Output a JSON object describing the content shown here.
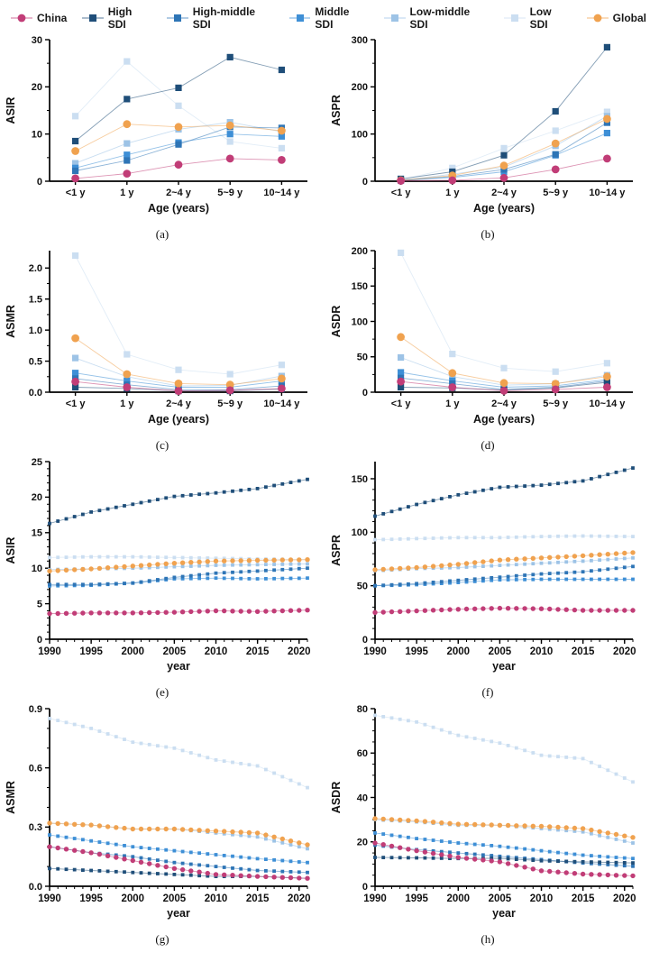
{
  "legend": {
    "items": [
      {
        "label": "China",
        "color": "#C13D77",
        "marker": "circle"
      },
      {
        "label": "High SDI",
        "color": "#1F4E79",
        "marker": "square"
      },
      {
        "label": "High-middle SDI",
        "color": "#2E75B6",
        "marker": "square"
      },
      {
        "label": "Middle SDI",
        "color": "#3E8FD6",
        "marker": "square"
      },
      {
        "label": "Low-middle SDI",
        "color": "#9DC3E6",
        "marker": "square"
      },
      {
        "label": "Low SDI",
        "color": "#CBDEF1",
        "marker": "square"
      },
      {
        "label": "Global",
        "color": "#F0A24F",
        "marker": "circle"
      }
    ]
  },
  "chart_data": [
    {
      "id": "a",
      "caption": "(a)",
      "type": "line",
      "ylabel": "ASIR",
      "xlabel": "Age (years)",
      "x_type": "category",
      "categories": [
        "<1 y",
        "1 y",
        "2~4 y",
        "5~9 y",
        "10~14 y"
      ],
      "ylim": [
        0,
        30
      ],
      "y_top_pad": 0,
      "yticks": [
        0,
        10,
        20,
        30
      ],
      "ytick_labels": [
        "0",
        "10",
        "20",
        "30"
      ],
      "y_minor_step": 5,
      "marker_size": 7.2,
      "series": [
        {
          "name": "Low SDI",
          "values": [
            13.8,
            25.4,
            16.0,
            8.4,
            7.0
          ]
        },
        {
          "name": "Low-middle SDI",
          "values": [
            3.8,
            8.0,
            11.0,
            12.5,
            10.5
          ]
        },
        {
          "name": "Middle SDI",
          "values": [
            2.8,
            5.6,
            8.2,
            10.0,
            9.5
          ]
        },
        {
          "name": "High-middle SDI",
          "values": [
            2.2,
            4.4,
            7.8,
            11.5,
            11.3
          ]
        },
        {
          "name": "High SDI",
          "values": [
            8.5,
            17.4,
            19.8,
            26.3,
            23.6
          ]
        },
        {
          "name": "Global",
          "values": [
            6.4,
            12.1,
            11.5,
            11.8,
            10.7
          ]
        },
        {
          "name": "China",
          "values": [
            0.6,
            1.6,
            3.5,
            4.8,
            4.5
          ]
        }
      ]
    },
    {
      "id": "b",
      "caption": "(b)",
      "type": "line",
      "ylabel": "ASPR",
      "xlabel": "Age (years)",
      "x_type": "category",
      "categories": [
        "<1 y",
        "1 y",
        "2~4 y",
        "5~9 y",
        "10~14 y"
      ],
      "ylim": [
        0,
        300
      ],
      "y_top_pad": 0,
      "yticks": [
        0,
        100,
        200,
        300
      ],
      "ytick_labels": [
        "0",
        "100",
        "200",
        "300"
      ],
      "y_minor_step": 50,
      "marker_size": 7.2,
      "series": [
        {
          "name": "Low SDI",
          "values": [
            3,
            28,
            70,
            107,
            147
          ]
        },
        {
          "name": "Low-middle SDI",
          "values": [
            2,
            15,
            30,
            75,
            138
          ]
        },
        {
          "name": "Middle SDI",
          "values": [
            2,
            8,
            20,
            55,
            102
          ]
        },
        {
          "name": "High-middle SDI",
          "values": [
            2,
            10,
            25,
            57,
            124
          ]
        },
        {
          "name": "High SDI",
          "values": [
            5,
            20,
            55,
            148,
            284
          ]
        },
        {
          "name": "Global",
          "values": [
            2,
            12,
            33,
            80,
            132
          ]
        },
        {
          "name": "China",
          "values": [
            1,
            2,
            7,
            25,
            48
          ]
        }
      ]
    },
    {
      "id": "c",
      "caption": "(c)",
      "type": "line",
      "ylabel": "ASMR",
      "xlabel": "Age (years)",
      "x_type": "category",
      "categories": [
        "<1 y",
        "1 y",
        "2~4 y",
        "5~9 y",
        "10~14 y"
      ],
      "ylim": [
        0,
        2.0
      ],
      "y_top_pad": 0.28,
      "yticks": [
        0,
        0.5,
        1.0,
        1.5,
        2.0
      ],
      "ytick_labels": [
        "0.0",
        "0.5",
        "1.0",
        "1.5",
        "2.0"
      ],
      "y_minor_step": 0.25,
      "marker_size": 7.2,
      "series": [
        {
          "name": "Low SDI",
          "values": [
            2.2,
            0.61,
            0.36,
            0.29,
            0.44
          ]
        },
        {
          "name": "Low-middle SDI",
          "values": [
            0.55,
            0.25,
            0.1,
            0.11,
            0.26
          ]
        },
        {
          "name": "Middle SDI",
          "values": [
            0.31,
            0.18,
            0.08,
            0.08,
            0.18
          ]
        },
        {
          "name": "High-middle SDI",
          "values": [
            0.22,
            0.12,
            0.04,
            0.04,
            0.1
          ]
        },
        {
          "name": "High SDI",
          "values": [
            0.08,
            0.06,
            0.02,
            0.02,
            0.05
          ]
        },
        {
          "name": "Global",
          "values": [
            0.87,
            0.29,
            0.14,
            0.12,
            0.22
          ]
        },
        {
          "name": "China",
          "values": [
            0.17,
            0.08,
            0.02,
            0.03,
            0.06
          ]
        }
      ]
    },
    {
      "id": "d",
      "caption": "(d)",
      "type": "line",
      "ylabel": "ASDR",
      "xlabel": "Age (years)",
      "x_type": "category",
      "categories": [
        "<1 y",
        "1 y",
        "2~4 y",
        "5~9 y",
        "10~14 y"
      ],
      "ylim": [
        0,
        200
      ],
      "y_top_pad": 0,
      "yticks": [
        0,
        50,
        100,
        150,
        200
      ],
      "ytick_labels": [
        "0",
        "50",
        "100",
        "150",
        "200"
      ],
      "y_minor_step": 25,
      "marker_size": 7.2,
      "series": [
        {
          "name": "Low SDI",
          "values": [
            197,
            54,
            34,
            29,
            41
          ]
        },
        {
          "name": "Low-middle SDI",
          "values": [
            49,
            22,
            10,
            12,
            24
          ]
        },
        {
          "name": "Middle SDI",
          "values": [
            28,
            16,
            7,
            9,
            18
          ]
        },
        {
          "name": "High-middle SDI",
          "values": [
            20,
            12,
            4,
            7,
            16
          ]
        },
        {
          "name": "High SDI",
          "values": [
            7,
            6,
            3,
            6,
            14
          ]
        },
        {
          "name": "Global",
          "values": [
            78,
            27,
            13,
            12,
            22
          ]
        },
        {
          "name": "China",
          "values": [
            15,
            7,
            2,
            4,
            7
          ]
        }
      ]
    },
    {
      "id": "e",
      "caption": "(e)",
      "type": "line",
      "ylabel": "ASIR",
      "xlabel": "year",
      "x_type": "linear",
      "xlim": [
        1990,
        2021
      ],
      "xticks": [
        1990,
        1995,
        2000,
        2005,
        2010,
        2015,
        2020
      ],
      "xtick_labels": [
        "1990",
        "1995",
        "2000",
        "2005",
        "2010",
        "2015",
        "2020"
      ],
      "x_minor_step": 1,
      "marker_step": 1,
      "anchor_x": [
        1990,
        1995,
        2000,
        2005,
        2010,
        2015,
        2021
      ],
      "ylim": [
        0,
        25
      ],
      "y_top_pad": 0,
      "yticks": [
        0,
        5,
        10,
        15,
        20,
        25
      ],
      "ytick_labels": [
        "0",
        "5",
        "10",
        "15",
        "20",
        "25"
      ],
      "y_minor_step": 1,
      "marker_size": 3.8,
      "series": [
        {
          "name": "Low SDI",
          "values": [
            11.5,
            11.6,
            11.6,
            11.5,
            11.4,
            11.3,
            11.2
          ]
        },
        {
          "name": "Low-middle SDI",
          "values": [
            9.8,
            9.9,
            10.0,
            10.2,
            10.4,
            10.5,
            10.6
          ]
        },
        {
          "name": "Middle SDI",
          "values": [
            7.5,
            7.6,
            7.9,
            8.5,
            8.6,
            8.5,
            8.6
          ]
        },
        {
          "name": "High-middle SDI",
          "values": [
            7.7,
            7.7,
            7.9,
            8.7,
            9.3,
            9.6,
            10.0
          ]
        },
        {
          "name": "High SDI",
          "values": [
            16.3,
            17.9,
            19.0,
            20.1,
            20.6,
            21.2,
            22.5
          ]
        },
        {
          "name": "Global",
          "values": [
            9.6,
            9.9,
            10.3,
            10.7,
            11.0,
            11.1,
            11.2
          ]
        },
        {
          "name": "China",
          "values": [
            3.6,
            3.7,
            3.7,
            3.8,
            4.0,
            3.9,
            4.1
          ]
        }
      ]
    },
    {
      "id": "f",
      "caption": "(f)",
      "type": "line",
      "ylabel": "ASPR",
      "xlabel": "year",
      "x_type": "linear",
      "xlim": [
        1990,
        2021
      ],
      "xticks": [
        1990,
        1995,
        2000,
        2005,
        2010,
        2015,
        2020
      ],
      "xtick_labels": [
        "1990",
        "1995",
        "2000",
        "2005",
        "2010",
        "2015",
        "2020"
      ],
      "x_minor_step": 1,
      "marker_step": 1,
      "anchor_x": [
        1990,
        1995,
        2000,
        2005,
        2010,
        2015,
        2021
      ],
      "ylim": [
        0,
        150
      ],
      "y_top_pad": 16,
      "yticks": [
        0,
        50,
        100,
        150
      ],
      "ytick_labels": [
        "0",
        "50",
        "100",
        "150"
      ],
      "y_minor_step": 10,
      "marker_size": 3.8,
      "series": [
        {
          "name": "Low SDI",
          "values": [
            93,
            94,
            95,
            95,
            96,
            96.5,
            96
          ]
        },
        {
          "name": "Low-middle SDI",
          "values": [
            64,
            66,
            67,
            69,
            71,
            73,
            76
          ]
        },
        {
          "name": "Middle SDI",
          "values": [
            50,
            51,
            53,
            55.5,
            56,
            56,
            56
          ]
        },
        {
          "name": "High-middle SDI",
          "values": [
            50,
            52,
            55,
            58,
            61,
            63,
            68
          ]
        },
        {
          "name": "High SDI",
          "values": [
            115,
            126,
            135,
            142,
            144,
            148,
            160
          ]
        },
        {
          "name": "Global",
          "values": [
            65,
            67,
            70,
            74,
            76,
            78,
            81
          ]
        },
        {
          "name": "China",
          "values": [
            25,
            26.5,
            28,
            29,
            28.5,
            27,
            27
          ]
        }
      ]
    },
    {
      "id": "g",
      "caption": "(g)",
      "type": "line",
      "ylabel": "ASMR",
      "xlabel": "year",
      "x_type": "linear",
      "xlim": [
        1990,
        2021
      ],
      "xticks": [
        1990,
        1995,
        2000,
        2005,
        2010,
        2015,
        2020
      ],
      "xtick_labels": [
        "1990",
        "1995",
        "2000",
        "2005",
        "2010",
        "2015",
        "2020"
      ],
      "x_minor_step": 1,
      "marker_step": 1,
      "anchor_x": [
        1990,
        1995,
        2000,
        2005,
        2010,
        2015,
        2021
      ],
      "ylim": [
        0,
        0.9
      ],
      "y_top_pad": 0,
      "yticks": [
        0,
        0.3,
        0.6,
        0.9
      ],
      "ytick_labels": [
        "0.0",
        "0.3",
        "0.6",
        "0.9"
      ],
      "y_minor_step": 0.1,
      "marker_size": 3.8,
      "series": [
        {
          "name": "Low SDI",
          "values": [
            0.85,
            0.8,
            0.73,
            0.7,
            0.64,
            0.61,
            0.5
          ]
        },
        {
          "name": "Low-middle SDI",
          "values": [
            0.32,
            0.31,
            0.29,
            0.29,
            0.27,
            0.25,
            0.19
          ]
        },
        {
          "name": "Middle SDI",
          "values": [
            0.26,
            0.23,
            0.2,
            0.18,
            0.16,
            0.14,
            0.12
          ]
        },
        {
          "name": "High-middle SDI",
          "values": [
            0.2,
            0.17,
            0.15,
            0.12,
            0.1,
            0.08,
            0.07
          ]
        },
        {
          "name": "High SDI",
          "values": [
            0.09,
            0.08,
            0.07,
            0.06,
            0.05,
            0.05,
            0.04
          ]
        },
        {
          "name": "Global",
          "values": [
            0.32,
            0.31,
            0.29,
            0.29,
            0.28,
            0.27,
            0.21
          ]
        },
        {
          "name": "China",
          "values": [
            0.2,
            0.17,
            0.13,
            0.09,
            0.06,
            0.05,
            0.04
          ]
        }
      ]
    },
    {
      "id": "h",
      "caption": "(h)",
      "type": "line",
      "ylabel": "ASDR",
      "xlabel": "year",
      "x_type": "linear",
      "xlim": [
        1990,
        2021
      ],
      "xticks": [
        1990,
        1995,
        2000,
        2005,
        2010,
        2015,
        2020
      ],
      "xtick_labels": [
        "1990",
        "1995",
        "2000",
        "2005",
        "2010",
        "2015",
        "2020"
      ],
      "x_minor_step": 1,
      "marker_step": 1,
      "anchor_x": [
        1990,
        1995,
        2000,
        2005,
        2010,
        2015,
        2021
      ],
      "ylim": [
        0,
        80
      ],
      "y_top_pad": 0,
      "yticks": [
        0,
        20,
        40,
        60,
        80
      ],
      "ytick_labels": [
        "0",
        "20",
        "40",
        "60",
        "80"
      ],
      "y_minor_step": 5,
      "marker_size": 3.8,
      "series": [
        {
          "name": "Low SDI",
          "values": [
            77,
            74,
            68,
            64.5,
            59,
            57.5,
            47
          ]
        },
        {
          "name": "Low-middle SDI",
          "values": [
            30,
            29,
            27.5,
            27.5,
            26,
            24.5,
            19.5
          ]
        },
        {
          "name": "Middle SDI",
          "values": [
            24,
            21.5,
            19.5,
            18,
            16,
            14,
            12.5
          ]
        },
        {
          "name": "High-middle SDI",
          "values": [
            18.5,
            16.5,
            15,
            13.5,
            12,
            10.5,
            9
          ]
        },
        {
          "name": "High SDI",
          "values": [
            13,
            12.8,
            12.5,
            12.6,
            11.5,
            11,
            10.5
          ]
        },
        {
          "name": "Global",
          "values": [
            30.5,
            29.5,
            28,
            27.5,
            27,
            26,
            22
          ]
        },
        {
          "name": "China",
          "values": [
            19.5,
            16,
            13,
            11,
            7,
            5.5,
            4.7
          ]
        }
      ]
    }
  ]
}
